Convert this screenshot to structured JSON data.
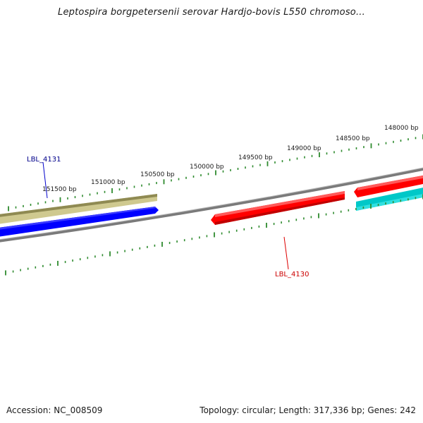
{
  "title": "Leptospira borgpetersenii serovar Hardjo-bovis L550 chromoso...",
  "accession": "Accession: NC_008509",
  "summary": "Topology: circular; Length: 317,336 bp; Genes: 242",
  "ruler": {
    "labels": [
      {
        "bp": 148000,
        "text": "148000 bp"
      },
      {
        "bp": 148500,
        "text": "148500 bp"
      },
      {
        "bp": 149000,
        "text": "149000 bp"
      },
      {
        "bp": 149500,
        "text": "149500 bp"
      },
      {
        "bp": 150000,
        "text": "150000 bp"
      },
      {
        "bp": 150500,
        "text": "150500 bp"
      },
      {
        "bp": 151000,
        "text": "151000 bp"
      },
      {
        "bp": 151500,
        "text": "151500 bp"
      }
    ],
    "tick_color": "#2e8b2e"
  },
  "genes": [
    {
      "label": "LBL_4131",
      "strand": "forward",
      "color": "#0000ff",
      "label_color": "#00008b"
    },
    {
      "label": "LBL_4130",
      "strand": "reverse",
      "color": "#ff0000",
      "label_color": "#cc0000"
    }
  ],
  "colors": {
    "backbone": "#7a7a7a",
    "forward_feature": "#0000ff",
    "reverse_feature": "#ff0000",
    "gc_track": "#b5ae6f",
    "cyan_feature": "#00c8c8"
  }
}
